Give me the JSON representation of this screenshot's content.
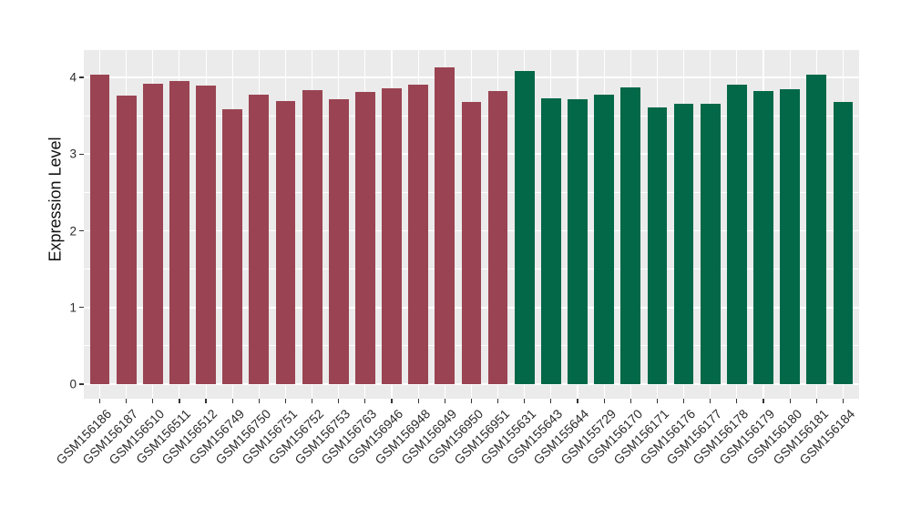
{
  "figure": {
    "background": "#FFFFFF",
    "panel_background": "#EBEBEB",
    "grid_color": "#FFFFFF",
    "tick_color": "#333333",
    "axis_text_color": "#2B2B2B"
  },
  "chart_data": {
    "type": "bar",
    "title": "",
    "xlabel": "",
    "ylabel": "Expression Level",
    "ylim": [
      -0.21,
      4.35
    ],
    "yticks": [
      0,
      1,
      2,
      3,
      4
    ],
    "yticks_minor": [
      0.5,
      1.5,
      2.5,
      3.5
    ],
    "grid": "white major and minor horizontal lines plus vertical line at each bar center on gray panel",
    "legend": false,
    "categories": [
      "GSM156186",
      "GSM156187",
      "GSM156510",
      "GSM156511",
      "GSM156512",
      "GSM156749",
      "GSM156750",
      "GSM156751",
      "GSM156752",
      "GSM156753",
      "GSM156763",
      "GSM156946",
      "GSM156948",
      "GSM156949",
      "GSM156950",
      "GSM156951",
      "GSM155631",
      "GSM155643",
      "GSM155644",
      "GSM155729",
      "GSM156170",
      "GSM156171",
      "GSM156176",
      "GSM156177",
      "GSM156178",
      "GSM156179",
      "GSM156180",
      "GSM156181",
      "GSM156184"
    ],
    "values": [
      4.04,
      3.76,
      3.92,
      3.95,
      3.89,
      3.59,
      3.78,
      3.69,
      3.83,
      3.71,
      3.81,
      3.86,
      3.91,
      4.13,
      3.68,
      3.82,
      4.08,
      3.73,
      3.72,
      3.77,
      3.87,
      3.61,
      3.66,
      3.66,
      3.91,
      3.82,
      3.85,
      4.03,
      3.68
    ],
    "groups": [
      {
        "color": "#9A4453",
        "start_index": 0,
        "end_index": 15
      },
      {
        "color": "#026848",
        "start_index": 16,
        "end_index": 28
      }
    ]
  }
}
